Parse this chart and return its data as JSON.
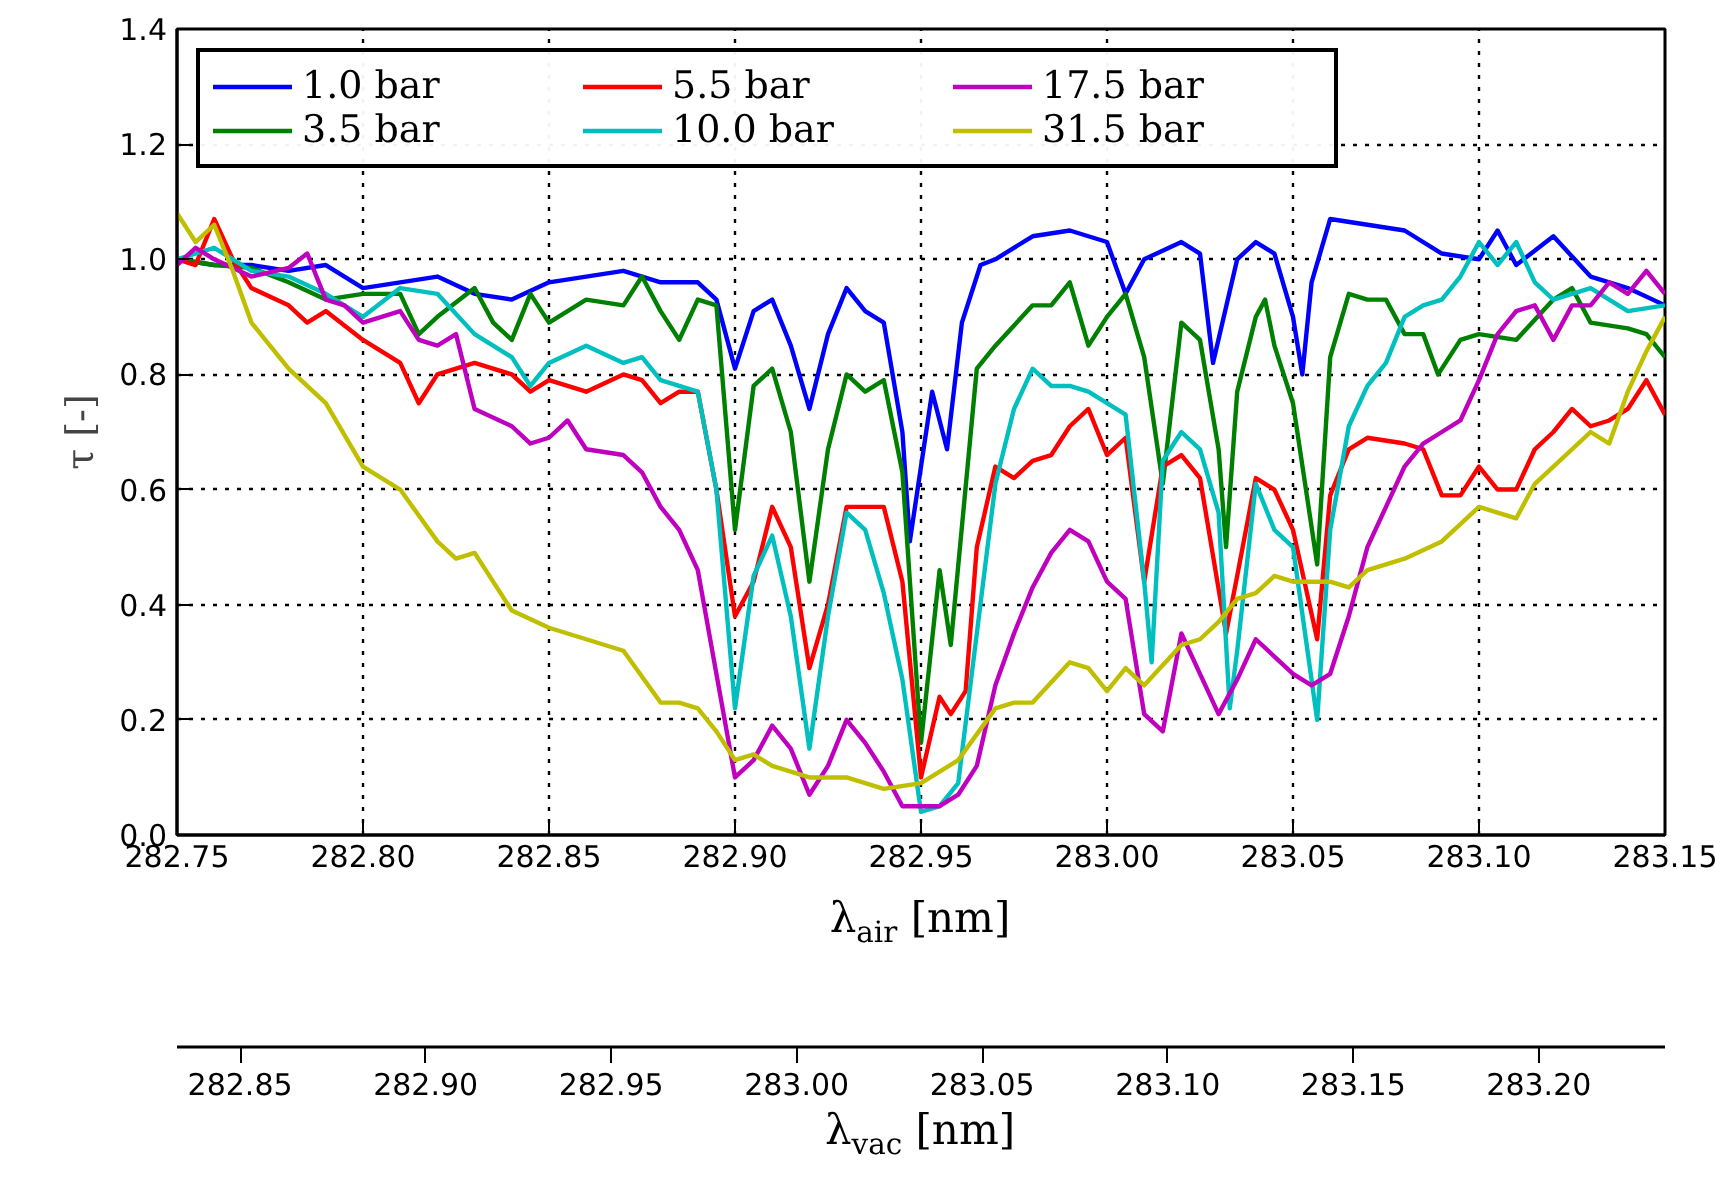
{
  "chart_data": {
    "type": "line",
    "xlabel": "λ$_{air}$ [nm]",
    "ylabel": "τ [-]",
    "x2label": "λ$_{vac}$ [nm]",
    "xlim": [
      282.75,
      283.15
    ],
    "ylim": [
      0,
      1.4
    ],
    "xticks": [
      {
        "value": 282.75,
        "label": "282.75"
      },
      {
        "value": 282.8,
        "label": "282.80"
      },
      {
        "value": 282.85,
        "label": "282.85"
      },
      {
        "value": 282.9,
        "label": "282.90"
      },
      {
        "value": 282.95,
        "label": "282.95"
      },
      {
        "value": 283.0,
        "label": "283.00"
      },
      {
        "value": 283.05,
        "label": "283.05"
      },
      {
        "value": 283.1,
        "label": "283.10"
      },
      {
        "value": 283.15,
        "label": "283.15"
      }
    ],
    "yticks": [
      {
        "value": 0,
        "label": "0.0"
      },
      {
        "value": 0.2,
        "label": "0.2"
      },
      {
        "value": 0.4,
        "label": "0.4"
      },
      {
        "value": 0.6,
        "label": "0.6"
      },
      {
        "value": 0.8,
        "label": "0.8"
      },
      {
        "value": 1.0,
        "label": "1.0"
      },
      {
        "value": 1.2,
        "label": "1.2"
      },
      {
        "value": 1.4,
        "label": "1.4"
      }
    ],
    "x2lim": [
      282.833,
      283.234
    ],
    "x2ticks": [
      {
        "value": 282.85,
        "label": "282.85"
      },
      {
        "value": 282.9,
        "label": "282.90"
      },
      {
        "value": 282.95,
        "label": "282.95"
      },
      {
        "value": 283.0,
        "label": "283.00"
      },
      {
        "value": 283.05,
        "label": "283.05"
      },
      {
        "value": 283.1,
        "label": "283.10"
      },
      {
        "value": 283.15,
        "label": "283.15"
      },
      {
        "value": 283.2,
        "label": "283.20"
      }
    ],
    "grid": true,
    "legend": "top left",
    "series": [
      {
        "name": "1.0 bar",
        "color": "#0000ff",
        "x": [
          282.75,
          282.76,
          282.77,
          282.78,
          282.79,
          282.8,
          282.81,
          282.82,
          282.83,
          282.84,
          282.85,
          282.86,
          282.87,
          282.88,
          282.89,
          282.895,
          282.9,
          282.905,
          282.91,
          282.915,
          282.92,
          282.925,
          282.93,
          282.935,
          282.94,
          282.945,
          282.947,
          282.953,
          282.957,
          282.961,
          282.966,
          282.97,
          282.98,
          282.99,
          283.0,
          283.005,
          283.01,
          283.02,
          283.025,
          283.0285,
          283.035,
          283.04,
          283.045,
          283.05,
          283.0525,
          283.055,
          283.06,
          283.07,
          283.08,
          283.09,
          283.1,
          283.105,
          283.11,
          283.12,
          283.13,
          283.14,
          283.15
        ],
        "values": [
          1.0,
          0.99,
          0.99,
          0.98,
          0.99,
          0.95,
          0.96,
          0.97,
          0.94,
          0.93,
          0.96,
          0.97,
          0.98,
          0.96,
          0.96,
          0.93,
          0.81,
          0.91,
          0.93,
          0.85,
          0.74,
          0.87,
          0.95,
          0.91,
          0.89,
          0.7,
          0.51,
          0.77,
          0.67,
          0.89,
          0.99,
          1.0,
          1.04,
          1.05,
          1.03,
          0.94,
          1.0,
          1.03,
          1.01,
          0.82,
          1.0,
          1.03,
          1.01,
          0.9,
          0.8,
          0.96,
          1.07,
          1.06,
          1.05,
          1.01,
          1.0,
          1.05,
          0.99,
          1.04,
          0.97,
          0.95,
          0.92
        ]
      },
      {
        "name": "3.5 bar",
        "color": "#008000",
        "x": [
          282.75,
          282.76,
          282.77,
          282.78,
          282.79,
          282.8,
          282.81,
          282.815,
          282.82,
          282.83,
          282.835,
          282.84,
          282.845,
          282.85,
          282.86,
          282.87,
          282.875,
          282.88,
          282.885,
          282.89,
          282.895,
          282.9,
          282.905,
          282.91,
          282.915,
          282.92,
          282.925,
          282.93,
          282.935,
          282.94,
          282.945,
          282.95,
          282.955,
          282.958,
          282.965,
          282.97,
          282.98,
          282.985,
          282.99,
          282.995,
          283.0,
          283.005,
          283.01,
          283.015,
          283.02,
          283.025,
          283.03,
          283.032,
          283.035,
          283.04,
          283.0425,
          283.045,
          283.05,
          283.0565,
          283.06,
          283.065,
          283.07,
          283.075,
          283.08,
          283.085,
          283.089,
          283.095,
          283.1,
          283.11,
          283.12,
          283.125,
          283.13,
          283.14,
          283.145,
          283.15
        ],
        "values": [
          1.0,
          0.99,
          0.985,
          0.96,
          0.93,
          0.94,
          0.94,
          0.87,
          0.9,
          0.95,
          0.89,
          0.86,
          0.94,
          0.89,
          0.93,
          0.92,
          0.97,
          0.91,
          0.86,
          0.93,
          0.92,
          0.53,
          0.78,
          0.81,
          0.7,
          0.44,
          0.67,
          0.8,
          0.77,
          0.79,
          0.63,
          0.16,
          0.46,
          0.33,
          0.81,
          0.85,
          0.92,
          0.92,
          0.96,
          0.85,
          0.9,
          0.94,
          0.83,
          0.61,
          0.89,
          0.86,
          0.67,
          0.5,
          0.77,
          0.9,
          0.93,
          0.85,
          0.75,
          0.47,
          0.83,
          0.94,
          0.93,
          0.93,
          0.87,
          0.87,
          0.8,
          0.86,
          0.87,
          0.86,
          0.93,
          0.95,
          0.89,
          0.88,
          0.87,
          0.83
        ]
      },
      {
        "name": "5.5 bar",
        "color": "#ff0000",
        "x": [
          282.75,
          282.755,
          282.76,
          282.765,
          282.77,
          282.78,
          282.785,
          282.79,
          282.8,
          282.81,
          282.815,
          282.82,
          282.83,
          282.84,
          282.845,
          282.85,
          282.86,
          282.87,
          282.875,
          282.88,
          282.885,
          282.89,
          282.895,
          282.9,
          282.905,
          282.91,
          282.915,
          282.92,
          282.925,
          282.93,
          282.935,
          282.94,
          282.945,
          282.95,
          282.955,
          282.958,
          282.962,
          282.965,
          282.97,
          282.975,
          282.98,
          282.985,
          282.99,
          282.995,
          283.0,
          283.005,
          283.01,
          283.015,
          283.02,
          283.025,
          283.032,
          283.035,
          283.04,
          283.045,
          283.05,
          283.0565,
          283.06,
          283.065,
          283.07,
          283.08,
          283.085,
          283.09,
          283.095,
          283.1,
          283.105,
          283.11,
          283.115,
          283.12,
          283.125,
          283.13,
          283.135,
          283.14,
          283.145,
          283.15
        ],
        "values": [
          1.0,
          0.99,
          1.07,
          1.0,
          0.95,
          0.92,
          0.89,
          0.91,
          0.86,
          0.82,
          0.75,
          0.8,
          0.82,
          0.8,
          0.77,
          0.79,
          0.77,
          0.8,
          0.79,
          0.75,
          0.77,
          0.77,
          0.6,
          0.38,
          0.44,
          0.57,
          0.5,
          0.29,
          0.4,
          0.57,
          0.57,
          0.57,
          0.44,
          0.1,
          0.24,
          0.21,
          0.25,
          0.5,
          0.64,
          0.62,
          0.65,
          0.66,
          0.71,
          0.74,
          0.66,
          0.69,
          0.44,
          0.64,
          0.66,
          0.62,
          0.35,
          0.45,
          0.62,
          0.6,
          0.53,
          0.34,
          0.59,
          0.67,
          0.69,
          0.68,
          0.67,
          0.59,
          0.59,
          0.64,
          0.6,
          0.6,
          0.67,
          0.7,
          0.74,
          0.71,
          0.72,
          0.74,
          0.79,
          0.73
        ]
      },
      {
        "name": "10.0 bar",
        "color": "#00bfbf",
        "x": [
          282.75,
          282.76,
          282.765,
          282.77,
          282.78,
          282.79,
          282.8,
          282.81,
          282.82,
          282.83,
          282.84,
          282.845,
          282.85,
          282.86,
          282.87,
          282.875,
          282.88,
          282.885,
          282.89,
          282.895,
          282.9,
          282.905,
          282.91,
          282.915,
          282.92,
          282.925,
          282.93,
          282.935,
          282.94,
          282.945,
          282.95,
          282.955,
          282.96,
          282.965,
          282.97,
          282.975,
          282.98,
          282.985,
          282.99,
          282.995,
          283.0,
          283.005,
          283.01,
          283.012,
          283.015,
          283.02,
          283.025,
          283.03,
          283.033,
          283.035,
          283.04,
          283.045,
          283.05,
          283.0565,
          283.06,
          283.065,
          283.07,
          283.075,
          283.08,
          283.085,
          283.09,
          283.095,
          283.1,
          283.105,
          283.11,
          283.115,
          283.12,
          283.13,
          283.14,
          283.15
        ],
        "values": [
          1.0,
          1.02,
          1.0,
          0.98,
          0.97,
          0.94,
          0.9,
          0.95,
          0.94,
          0.87,
          0.83,
          0.78,
          0.82,
          0.85,
          0.82,
          0.83,
          0.79,
          0.78,
          0.77,
          0.6,
          0.22,
          0.45,
          0.52,
          0.38,
          0.15,
          0.38,
          0.56,
          0.53,
          0.42,
          0.27,
          0.04,
          0.05,
          0.09,
          0.35,
          0.61,
          0.74,
          0.81,
          0.78,
          0.78,
          0.77,
          0.75,
          0.73,
          0.44,
          0.3,
          0.65,
          0.7,
          0.67,
          0.56,
          0.22,
          0.32,
          0.61,
          0.53,
          0.5,
          0.2,
          0.53,
          0.71,
          0.78,
          0.82,
          0.9,
          0.92,
          0.93,
          0.97,
          1.03,
          0.99,
          1.03,
          0.96,
          0.93,
          0.95,
          0.91,
          0.92
        ]
      },
      {
        "name": "17.5 bar",
        "color": "#bf00bf",
        "x": [
          282.75,
          282.755,
          282.76,
          282.77,
          282.78,
          282.785,
          282.79,
          282.795,
          282.8,
          282.81,
          282.815,
          282.82,
          282.825,
          282.83,
          282.84,
          282.845,
          282.85,
          282.855,
          282.86,
          282.87,
          282.875,
          282.88,
          282.885,
          282.89,
          282.895,
          282.9,
          282.905,
          282.91,
          282.915,
          282.92,
          282.925,
          282.93,
          282.935,
          282.94,
          282.945,
          282.95,
          282.955,
          282.96,
          282.965,
          282.97,
          282.975,
          282.98,
          282.985,
          282.99,
          282.995,
          283.0,
          283.005,
          283.01,
          283.015,
          283.02,
          283.025,
          283.03,
          283.035,
          283.04,
          283.045,
          283.05,
          283.055,
          283.06,
          283.065,
          283.07,
          283.075,
          283.08,
          283.085,
          283.09,
          283.095,
          283.1,
          283.105,
          283.11,
          283.115,
          283.12,
          283.125,
          283.13,
          283.135,
          283.14,
          283.145,
          283.15
        ],
        "values": [
          0.99,
          1.02,
          1.0,
          0.97,
          0.985,
          1.01,
          0.93,
          0.92,
          0.89,
          0.91,
          0.86,
          0.85,
          0.87,
          0.74,
          0.71,
          0.68,
          0.69,
          0.72,
          0.67,
          0.66,
          0.63,
          0.57,
          0.53,
          0.46,
          0.28,
          0.1,
          0.13,
          0.19,
          0.15,
          0.07,
          0.12,
          0.2,
          0.16,
          0.11,
          0.05,
          0.05,
          0.05,
          0.07,
          0.12,
          0.26,
          0.35,
          0.43,
          0.49,
          0.53,
          0.51,
          0.44,
          0.41,
          0.21,
          0.18,
          0.35,
          0.28,
          0.21,
          0.27,
          0.34,
          0.31,
          0.28,
          0.26,
          0.28,
          0.38,
          0.5,
          0.57,
          0.64,
          0.68,
          0.7,
          0.72,
          0.79,
          0.87,
          0.91,
          0.92,
          0.86,
          0.92,
          0.92,
          0.96,
          0.94,
          0.98,
          0.94
        ]
      },
      {
        "name": "31.5 bar",
        "color": "#bfbf00",
        "x": [
          282.75,
          282.755,
          282.76,
          282.765,
          282.77,
          282.775,
          282.78,
          282.79,
          282.8,
          282.81,
          282.82,
          282.825,
          282.83,
          282.84,
          282.85,
          282.86,
          282.87,
          282.88,
          282.885,
          282.89,
          282.895,
          282.9,
          282.905,
          282.91,
          282.92,
          282.93,
          282.94,
          282.95,
          282.96,
          282.97,
          282.975,
          282.98,
          282.99,
          282.995,
          283.0,
          283.005,
          283.01,
          283.02,
          283.025,
          283.03,
          283.035,
          283.04,
          283.045,
          283.05,
          283.06,
          283.065,
          283.07,
          283.08,
          283.09,
          283.1,
          283.105,
          283.11,
          283.115,
          283.12,
          283.13,
          283.135,
          283.14,
          283.145,
          283.15
        ],
        "values": [
          1.08,
          1.03,
          1.06,
          0.98,
          0.89,
          0.85,
          0.81,
          0.75,
          0.64,
          0.6,
          0.51,
          0.48,
          0.49,
          0.39,
          0.36,
          0.34,
          0.32,
          0.23,
          0.23,
          0.22,
          0.18,
          0.13,
          0.14,
          0.12,
          0.1,
          0.1,
          0.08,
          0.09,
          0.13,
          0.22,
          0.23,
          0.23,
          0.3,
          0.29,
          0.25,
          0.29,
          0.26,
          0.33,
          0.34,
          0.37,
          0.41,
          0.42,
          0.45,
          0.44,
          0.44,
          0.43,
          0.46,
          0.48,
          0.51,
          0.57,
          0.56,
          0.55,
          0.61,
          0.64,
          0.7,
          0.68,
          0.77,
          0.84,
          0.9
        ]
      }
    ]
  }
}
